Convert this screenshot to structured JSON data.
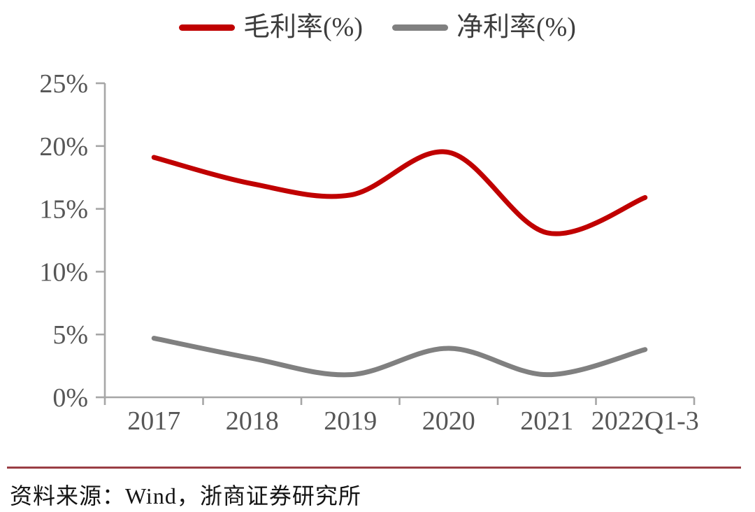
{
  "chart_data": {
    "type": "line",
    "title": "",
    "categories": [
      "2017",
      "2018",
      "2019",
      "2020",
      "2021",
      "2022Q1-3"
    ],
    "series": [
      {
        "name": "毛利率(%)",
        "color": "#c00000",
        "values": [
          19.1,
          17.0,
          16.1,
          19.5,
          13.1,
          15.9
        ]
      },
      {
        "name": "净利率(%)",
        "color": "#808080",
        "values": [
          4.7,
          3.1,
          1.8,
          3.9,
          1.8,
          3.8
        ]
      }
    ],
    "ylim": [
      0,
      25
    ],
    "y_ticks": [
      {
        "v": 0,
        "label": "0%"
      },
      {
        "v": 5,
        "label": "5%"
      },
      {
        "v": 10,
        "label": "10%"
      },
      {
        "v": 15,
        "label": "15%"
      },
      {
        "v": 20,
        "label": "20%"
      },
      {
        "v": 25,
        "label": "25%"
      }
    ],
    "grid": false,
    "legend_position": "top",
    "smoothed": true
  },
  "footer": {
    "source_text": "资料来源：Wind，浙商证券研究所"
  },
  "colors": {
    "axis": "#a6a6a6",
    "tick_label": "#565656",
    "separator": "#9a3e44"
  }
}
